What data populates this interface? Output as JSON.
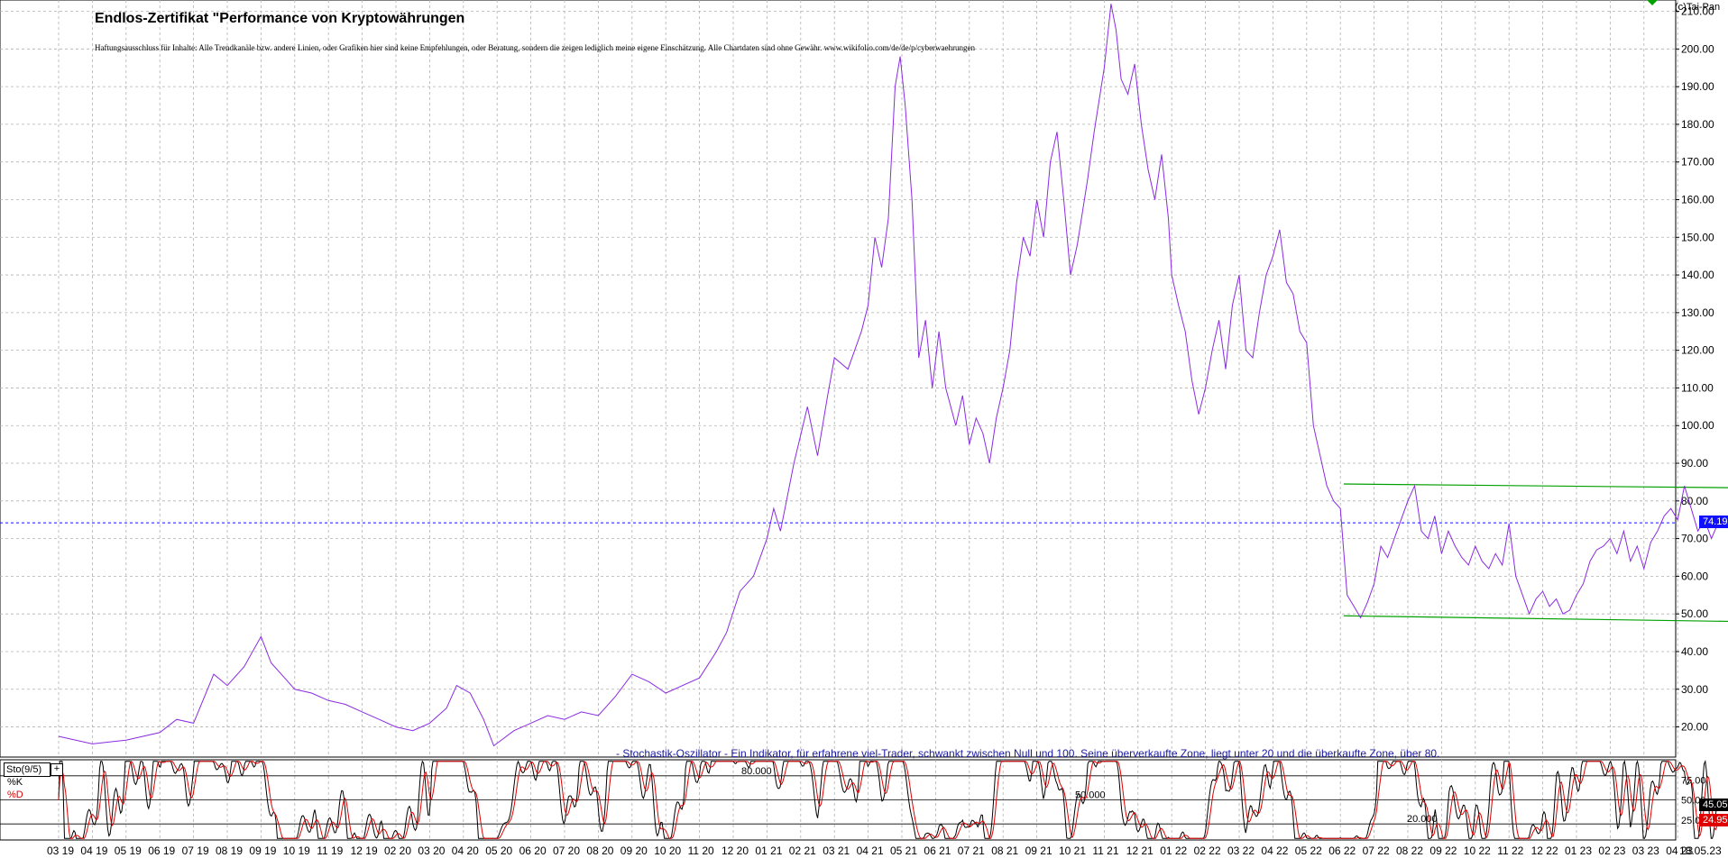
{
  "title": "Endlos-Zertifikat \"Performance von Kryptowährungen",
  "disclaimer": "Haftungsausschluss für Inhalte: Alle Trendkanäle bzw. andere Linien, oder Grafiken hier sind keine Empfehlungen, oder Beratung, sondern die zeigen lediglich meine eigene Einschätzung. Alle Chartdaten sind ohne Gewähr. www.wikifolio.com/de/de/p/cyberwaehrungen",
  "copyright": "(c)Tai-Pan",
  "oscillator_note": "- Stochastik-Oszillator - Ein Indikator, für erfahrene viel-Trader, schwankt zwischen Null und 100. Seine überverkaufte Zone, liegt unter 20 und die überkaufte Zone, über 80.",
  "indicator": {
    "name": "Sto(9/5)",
    "k_label": "%K",
    "d_label": "%D",
    "k_value": "45.051",
    "d_value": "24.950",
    "level_labels": [
      "80.000",
      "50.000",
      "20.000"
    ]
  },
  "last_price_label": "74.19",
  "colors": {
    "price": "#8a2be2",
    "channel": "#00a000",
    "k": "#000000",
    "d": "#e00000",
    "price_tag": "#1010ff",
    "grid": "#b0b0b0"
  },
  "chart_data": [
    {
      "type": "line",
      "title": "Endlos-Zertifikat \"Performance von Kryptowährungen",
      "y_axis_side": "right",
      "ylim": [
        12,
        213
      ],
      "yticks": [
        20,
        30,
        40,
        50,
        60,
        70,
        80,
        90,
        100,
        110,
        120,
        130,
        140,
        150,
        160,
        170,
        180,
        190,
        200,
        210
      ],
      "ytick_labels": [
        "20.00",
        "30.00",
        "40.00",
        "50.00",
        "60.00",
        "70.00",
        "80.00",
        "90.00",
        "100.00",
        "110.00",
        "120.00",
        "130.00",
        "140.00",
        "150.00",
        "160.00",
        "170.00",
        "180.00",
        "190.00",
        "200.00",
        "210.00"
      ],
      "grid": true,
      "x_labels": [
        "03 19",
        "04 19",
        "05 19",
        "06 19",
        "07 19",
        "08 19",
        "09 19",
        "10 19",
        "11 19",
        "12 19",
        "02 20",
        "03 20",
        "04 20",
        "05 20",
        "06 20",
        "07 20",
        "08 20",
        "09 20",
        "10 20",
        "11 20",
        "12 20",
        "01 21",
        "02 21",
        "03 21",
        "04 21",
        "05 21",
        "06 21",
        "07 21",
        "08 21",
        "09 21",
        "10 21",
        "11 21",
        "12 21",
        "01 22",
        "02 22",
        "03 22",
        "04 22",
        "05 22",
        "06 22",
        "07 22",
        "08 22",
        "09 22",
        "10 22",
        "11 22",
        "12 22",
        "01 23",
        "02 23",
        "03 23",
        "04 23"
      ],
      "last_date_label": "18.05.23",
      "series": [
        {
          "points": [
            [
              0,
              17.5
            ],
            [
              1,
              15.5
            ],
            [
              2,
              16.5
            ],
            [
              3,
              18.5
            ],
            [
              3.5,
              22
            ],
            [
              4,
              21
            ],
            [
              4.6,
              34
            ],
            [
              5,
              31
            ],
            [
              5.5,
              36
            ],
            [
              6,
              44
            ],
            [
              6.3,
              37
            ],
            [
              6.7,
              33
            ],
            [
              7,
              30
            ],
            [
              7.5,
              29
            ],
            [
              8,
              27
            ],
            [
              8.5,
              26
            ],
            [
              9,
              24
            ],
            [
              9.5,
              22
            ],
            [
              10,
              20
            ],
            [
              10.5,
              19
            ],
            [
              11,
              21
            ],
            [
              11.5,
              25
            ],
            [
              11.8,
              31
            ],
            [
              12.2,
              29
            ],
            [
              12.6,
              22
            ],
            [
              12.9,
              15
            ],
            [
              13.5,
              19
            ],
            [
              14,
              21
            ],
            [
              14.5,
              23
            ],
            [
              15,
              22
            ],
            [
              15.5,
              24
            ],
            [
              16,
              23
            ],
            [
              16.5,
              28
            ],
            [
              17,
              34
            ],
            [
              17.5,
              32
            ],
            [
              18,
              29
            ],
            [
              18.5,
              31
            ],
            [
              19,
              33
            ],
            [
              19.5,
              40
            ],
            [
              19.8,
              45
            ],
            [
              20.2,
              56
            ],
            [
              20.6,
              60
            ],
            [
              21,
              70
            ],
            [
              21.2,
              78
            ],
            [
              21.4,
              72
            ],
            [
              21.8,
              90
            ],
            [
              22.2,
              105
            ],
            [
              22.5,
              92
            ],
            [
              22.8,
              108
            ],
            [
              23,
              118
            ],
            [
              23.4,
              115
            ],
            [
              23.8,
              125
            ],
            [
              24,
              132
            ],
            [
              24.2,
              150
            ],
            [
              24.4,
              142
            ],
            [
              24.6,
              155
            ],
            [
              24.8,
              190
            ],
            [
              24.95,
              198
            ],
            [
              25.1,
              185
            ],
            [
              25.3,
              160
            ],
            [
              25.5,
              118
            ],
            [
              25.7,
              128
            ],
            [
              25.9,
              110
            ],
            [
              26.1,
              125
            ],
            [
              26.3,
              110
            ],
            [
              26.6,
              100
            ],
            [
              26.8,
              108
            ],
            [
              27,
              95
            ],
            [
              27.2,
              102
            ],
            [
              27.4,
              98
            ],
            [
              27.6,
              90
            ],
            [
              27.8,
              102
            ],
            [
              28,
              110
            ],
            [
              28.2,
              120
            ],
            [
              28.4,
              138
            ],
            [
              28.6,
              150
            ],
            [
              28.8,
              145
            ],
            [
              29,
              160
            ],
            [
              29.2,
              150
            ],
            [
              29.4,
              170
            ],
            [
              29.6,
              178
            ],
            [
              29.8,
              160
            ],
            [
              30,
              140
            ],
            [
              30.2,
              148
            ],
            [
              30.5,
              165
            ],
            [
              30.7,
              178
            ],
            [
              31,
              195
            ],
            [
              31.2,
              212
            ],
            [
              31.35,
              205
            ],
            [
              31.5,
              192
            ],
            [
              31.7,
              188
            ],
            [
              31.9,
              196
            ],
            [
              32.1,
              180
            ],
            [
              32.3,
              168
            ],
            [
              32.5,
              160
            ],
            [
              32.7,
              172
            ],
            [
              32.9,
              155
            ],
            [
              33,
              140
            ],
            [
              33.2,
              132
            ],
            [
              33.4,
              125
            ],
            [
              33.6,
              112
            ],
            [
              33.8,
              103
            ],
            [
              34,
              110
            ],
            [
              34.2,
              120
            ],
            [
              34.4,
              128
            ],
            [
              34.6,
              115
            ],
            [
              34.8,
              132
            ],
            [
              35,
              140
            ],
            [
              35.2,
              120
            ],
            [
              35.4,
              118
            ],
            [
              35.6,
              130
            ],
            [
              35.8,
              140
            ],
            [
              36,
              145
            ],
            [
              36.2,
              152
            ],
            [
              36.4,
              138
            ],
            [
              36.6,
              135
            ],
            [
              36.8,
              125
            ],
            [
              37,
              122
            ],
            [
              37.2,
              100
            ],
            [
              37.4,
              92
            ],
            [
              37.6,
              84
            ],
            [
              37.8,
              80
            ],
            [
              38,
              78
            ],
            [
              38.2,
              55
            ],
            [
              38.4,
              52
            ],
            [
              38.6,
              49
            ],
            [
              38.8,
              53
            ],
            [
              39,
              58
            ],
            [
              39.2,
              68
            ],
            [
              39.4,
              65
            ],
            [
              39.6,
              70
            ],
            [
              39.8,
              75
            ],
            [
              40,
              80
            ],
            [
              40.2,
              84
            ],
            [
              40.4,
              72
            ],
            [
              40.6,
              70
            ],
            [
              40.8,
              76
            ],
            [
              41,
              66
            ],
            [
              41.2,
              72
            ],
            [
              41.4,
              68
            ],
            [
              41.6,
              65
            ],
            [
              41.8,
              63
            ],
            [
              42,
              68
            ],
            [
              42.2,
              64
            ],
            [
              42.4,
              62
            ],
            [
              42.6,
              66
            ],
            [
              42.8,
              63
            ],
            [
              43,
              74
            ],
            [
              43.2,
              60
            ],
            [
              43.4,
              55
            ],
            [
              43.6,
              50
            ],
            [
              43.8,
              54
            ],
            [
              44,
              56
            ],
            [
              44.2,
              52
            ],
            [
              44.4,
              54
            ],
            [
              44.6,
              50
            ],
            [
              44.8,
              51
            ],
            [
              45,
              55
            ],
            [
              45.2,
              58
            ],
            [
              45.4,
              64
            ],
            [
              45.6,
              67
            ],
            [
              45.8,
              68
            ],
            [
              46,
              70
            ],
            [
              46.2,
              66
            ],
            [
              46.4,
              72
            ],
            [
              46.6,
              64
            ],
            [
              46.8,
              68
            ],
            [
              47,
              62
            ],
            [
              47.2,
              69
            ],
            [
              47.4,
              72
            ],
            [
              47.6,
              76
            ],
            [
              47.8,
              78
            ],
            [
              48,
              75
            ],
            [
              48.2,
              84
            ],
            [
              48.4,
              78
            ],
            [
              48.6,
              72
            ],
            [
              48.8,
              75
            ],
            [
              49,
              70
            ],
            [
              49.2,
              74.19
            ]
          ]
        }
      ],
      "channel_lines": [
        {
          "from": [
            38.1,
            84.5
          ],
          "to": [
            49.7,
            83.5
          ]
        },
        {
          "from": [
            38.1,
            49.5
          ],
          "to": [
            49.7,
            48
          ]
        }
      ],
      "last_value": 74.19
    },
    {
      "type": "line",
      "title": "Sto(9/5)",
      "ylim": [
        0,
        100
      ],
      "yticks": [
        20,
        50,
        80
      ],
      "ytick_labels": [
        "20.000",
        "50.000",
        "80.000"
      ],
      "right_tick_labels": [
        "75.00",
        "50.00",
        "25.00"
      ],
      "k_period": 9,
      "d_period": 5,
      "last_k": 45.051,
      "last_d": 24.95
    }
  ]
}
